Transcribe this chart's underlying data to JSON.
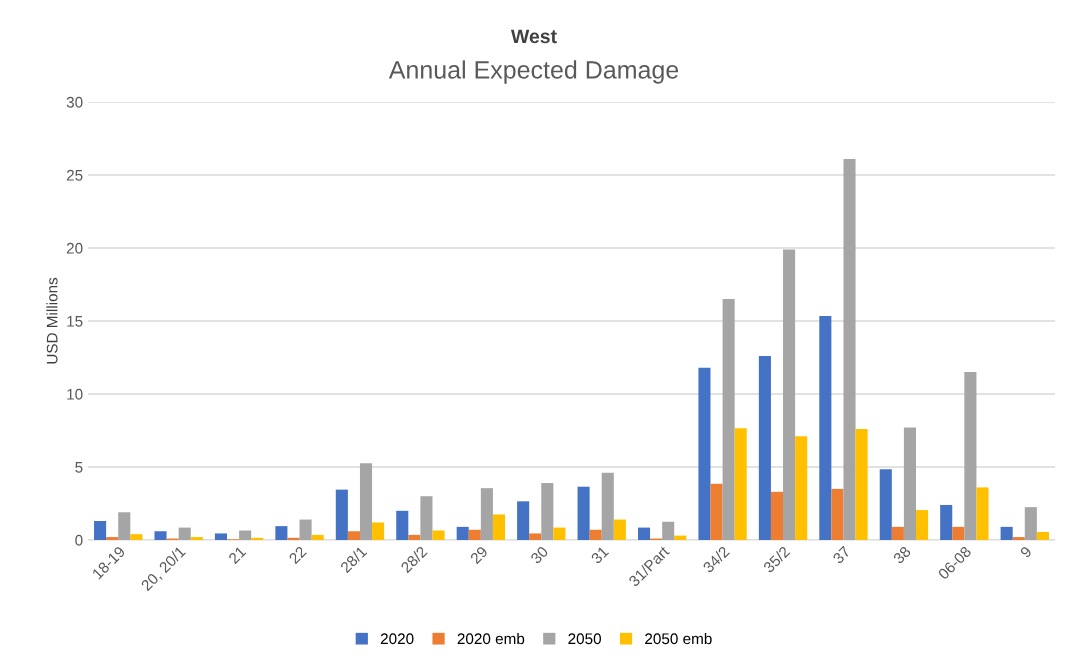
{
  "chart_data": {
    "type": "bar",
    "title": "West",
    "subtitle": "Annual Expected Damage",
    "ylabel": "USD Millions",
    "categories": [
      "18-19",
      "20, 20/1",
      "21",
      "22",
      "28/1",
      "28/2",
      "29",
      "30",
      "31",
      "31/Part",
      "34/2",
      "35/2",
      "37",
      "38",
      "06-08",
      "9"
    ],
    "series": [
      {
        "name": "2020",
        "color": "#4472c4",
        "values": [
          1.3,
          0.6,
          0.45,
          0.95,
          3.45,
          2.0,
          0.9,
          2.65,
          3.65,
          0.85,
          11.8,
          12.6,
          15.35,
          4.85,
          2.4,
          0.9
        ]
      },
      {
        "name": "2020 emb",
        "color": "#ed7d31",
        "values": [
          0.2,
          0.1,
          0.05,
          0.15,
          0.6,
          0.35,
          0.7,
          0.45,
          0.7,
          0.1,
          3.85,
          3.3,
          3.5,
          0.9,
          0.9,
          0.2
        ]
      },
      {
        "name": "2050",
        "color": "#a5a5a5",
        "values": [
          1.9,
          0.85,
          0.65,
          1.4,
          5.25,
          3.0,
          3.55,
          3.9,
          4.6,
          1.25,
          16.5,
          19.9,
          26.1,
          7.7,
          11.5,
          2.25
        ]
      },
      {
        "name": "2050 emb",
        "color": "#ffc000",
        "values": [
          0.4,
          0.2,
          0.15,
          0.35,
          1.2,
          0.65,
          1.75,
          0.85,
          1.4,
          0.3,
          7.65,
          7.1,
          7.6,
          2.05,
          3.6,
          0.55
        ]
      }
    ],
    "ylim": [
      0,
      30
    ],
    "yticks": [
      0,
      5,
      10,
      15,
      20,
      25,
      30
    ],
    "grid": "y",
    "legend": "bottom"
  }
}
